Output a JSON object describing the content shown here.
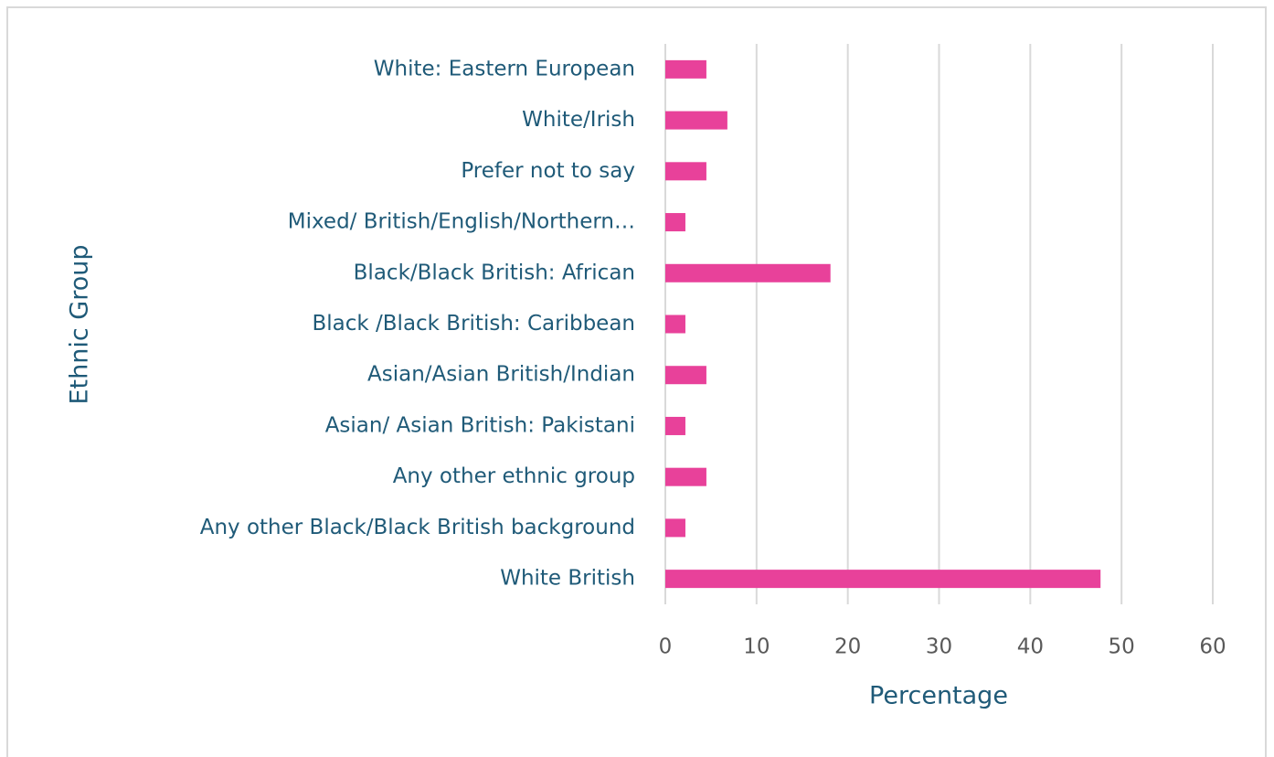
{
  "chart_data": {
    "type": "barh",
    "xlabel": "Percentage",
    "ylabel": "Ethnic Group",
    "categories": [
      "White: Eastern European",
      "White/Irish",
      "Prefer not to say",
      "Mixed/ British/English/Northern…",
      "Black/Black British: African",
      "Black /Black British: Caribbean",
      "Asian/Asian British/Indian",
      "Asian/ Asian British: Pakistani",
      "Any other ethnic group",
      "Any other Black/Black British background",
      "White British"
    ],
    "values": [
      4.5,
      6.8,
      4.5,
      2.2,
      18.1,
      2.2,
      4.5,
      2.2,
      4.5,
      2.2,
      47.7
    ],
    "color": "#e8419a",
    "xlim": [
      0,
      60
    ],
    "xticks": [
      0,
      10,
      20,
      30,
      40,
      50,
      60
    ],
    "grid": true
  }
}
